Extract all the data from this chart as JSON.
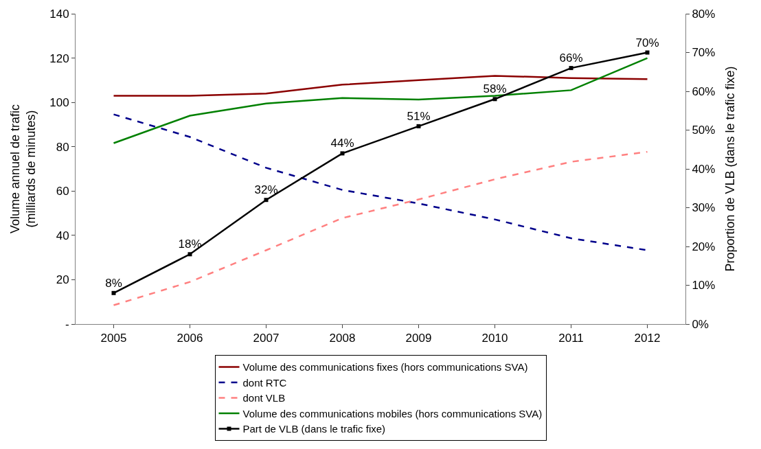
{
  "chart_data": {
    "type": "line",
    "categories": [
      "2005",
      "2006",
      "2007",
      "2008",
      "2009",
      "2010",
      "2011",
      "2012"
    ],
    "ylabel": "Volume annuel de trafic\n(milliards de minutes)",
    "y2label": "Proportion de VLB (dans le trafic fixe)",
    "ylim": [
      0,
      140
    ],
    "yticks": [
      {
        "value": 0,
        "label": "-"
      },
      20,
      40,
      60,
      80,
      100,
      120,
      140
    ],
    "y2lim": [
      0,
      80
    ],
    "y2ticks": [
      {
        "value": 0,
        "label": "0%"
      },
      {
        "value": 10,
        "label": "10%"
      },
      {
        "value": 20,
        "label": "20%"
      },
      {
        "value": 30,
        "label": "30%"
      },
      {
        "value": 40,
        "label": "40%"
      },
      {
        "value": 50,
        "label": "50%"
      },
      {
        "value": 60,
        "label": "60%"
      },
      {
        "value": 70,
        "label": "70%"
      },
      {
        "value": 80,
        "label": "80%"
      }
    ],
    "legend": "bottom",
    "series": [
      {
        "name": "Volume des communications fixes (hors communications SVA)",
        "color": "#8b0000",
        "line_style": "solid",
        "marker": "none",
        "values": [
          103,
          103,
          104,
          108,
          110,
          112,
          111,
          110.5
        ]
      },
      {
        "name": "dont RTC",
        "color": "#00008b",
        "line_style": "dashed",
        "marker": "none",
        "values": [
          94.6,
          84.4,
          70.5,
          60.5,
          54.4,
          47.2,
          38.7,
          33.3
        ]
      },
      {
        "name": "dont VLB",
        "color": "#ff8080",
        "line_style": "dashed",
        "marker": "none",
        "values": [
          8.5,
          19,
          33.3,
          47.8,
          56.2,
          65.3,
          73.2,
          77.7
        ]
      },
      {
        "name": "Volume des communications mobiles (hors communications SVA)",
        "color": "#008000",
        "line_style": "solid",
        "marker": "none",
        "values": [
          81.6,
          94,
          99.5,
          102,
          101.3,
          103,
          105.5,
          120
        ]
      },
      {
        "name": "Part de VLB (dans le trafic fixe)",
        "color": "#000000",
        "line_style": "solid",
        "marker": "square",
        "axis": "y2",
        "values": [
          8,
          18,
          32,
          44,
          51,
          58,
          66,
          70
        ],
        "value_labels": [
          "8%",
          "18%",
          "32%",
          "44%",
          "51%",
          "58%",
          "66%",
          "70%"
        ]
      }
    ]
  }
}
